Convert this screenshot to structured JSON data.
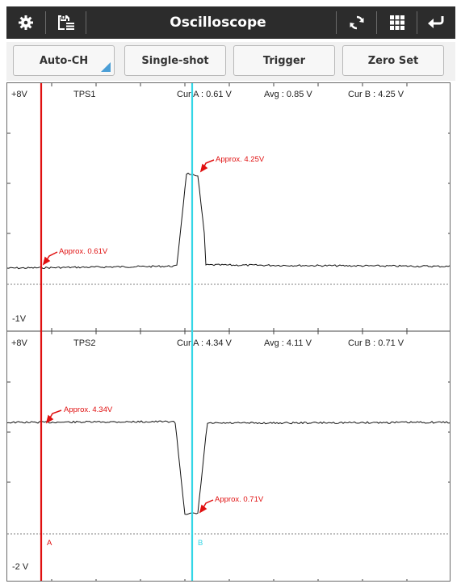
{
  "topbar": {
    "title": "Oscilloscope",
    "icons": [
      "gear-icon",
      "save-list-icon",
      "refresh-icon",
      "grid-icon",
      "return-icon"
    ]
  },
  "toolbar": {
    "buttons": [
      {
        "label": "Auto-CH",
        "has_menu": true
      },
      {
        "label": "Single-shot"
      },
      {
        "label": "Trigger"
      },
      {
        "label": "Zero Set"
      }
    ]
  },
  "channel1": {
    "name": "TPS1",
    "top_label": "+8V",
    "bottom_label": "-1V",
    "cur_a": "Cur A : 0.61 V",
    "avg": "Avg : 0.85 V",
    "cur_b": "Cur B : 4.25 V",
    "annotation_a": "Approx. 0.61V",
    "annotation_b": "Approx. 4.25V"
  },
  "channel2": {
    "name": "TPS2",
    "top_label": "+8V",
    "bottom_label": "-2 V",
    "cur_a": "Cur A : 4.34 V",
    "avg": "Avg : 4.11 V",
    "cur_b": "Cur B : 0.71 V",
    "annotation_a": "Approx. 4.34V",
    "annotation_b": "Approx. 0.71V"
  },
  "cursors": {
    "a_label": "A",
    "b_label": "B",
    "a_color": "#e01010",
    "b_color": "#33d6e6"
  },
  "colors": {
    "trace": "#111111",
    "annotation": "#e01010",
    "topbar": "#2c2c2c",
    "menu_indicator": "#4a9ed6"
  }
}
